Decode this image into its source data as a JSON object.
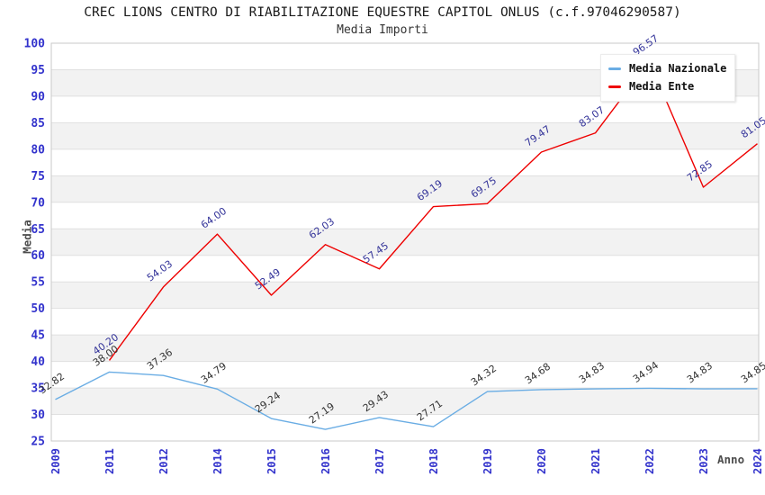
{
  "header": {
    "title": "CREC LIONS CENTRO DI RIABILITAZIONE EQUESTRE CAPITOL ONLUS (c.f.97046290587)",
    "subtitle": "Media Importi"
  },
  "chart_data": {
    "type": "line",
    "title": "CREC LIONS CENTRO DI RIABILITAZIONE EQUESTRE CAPITOL ONLUS (c.f.97046290587)",
    "subtitle": "Media Importi",
    "xlabel": "Anno",
    "ylabel": "Media",
    "ylim": [
      25,
      100
    ],
    "ytick_step": 5,
    "y_ticks": [
      "100",
      "95",
      "90",
      "85",
      "80",
      "75",
      "70",
      "65",
      "60",
      "55",
      "50",
      "45",
      "40",
      "35",
      "30",
      "25"
    ],
    "categories": [
      "2009",
      "2011",
      "2012",
      "2014",
      "2015",
      "2016",
      "2017",
      "2018",
      "2019",
      "2020",
      "2021",
      "2022",
      "2023",
      "2024"
    ],
    "series": [
      {
        "name": "Media Nazionale",
        "color": "#6aade4",
        "label_color": "#333333",
        "values": [
          32.82,
          38.0,
          37.36,
          34.79,
          29.24,
          27.19,
          29.43,
          27.71,
          34.32,
          34.68,
          34.83,
          34.94,
          34.83,
          34.85
        ],
        "labels": [
          "32.82",
          "38.00",
          "37.36",
          "34.79",
          "29.24",
          "27.19",
          "29.43",
          "27.71",
          "34.32",
          "34.68",
          "34.83",
          "34.94",
          "34.83",
          "34.85"
        ]
      },
      {
        "name": "Media Ente",
        "color": "#ee0000",
        "label_color": "#333399",
        "values": [
          null,
          40.2,
          54.03,
          64.0,
          52.49,
          62.03,
          57.45,
          69.19,
          69.75,
          79.47,
          83.07,
          96.57,
          72.85,
          81.05
        ],
        "labels": [
          "",
          "40.20",
          "54.03",
          "64.00",
          "52.49",
          "62.03",
          "57.45",
          "69.19",
          "69.75",
          "79.47",
          "83.07",
          "96.57",
          "72.85",
          "81.05"
        ]
      }
    ],
    "legend_position": "top-right",
    "grid": "horizontal-bands",
    "band_fill": "#f2f2f2",
    "gridline_color": "#e0e0e0",
    "frame_color": "#c9c9c9",
    "tick_label_color": "#3333cc",
    "axis_title_color": "#4d4d4d",
    "annotation": "2022 Media Ente label partially hidden behind legend box; visible fragment \".57\""
  }
}
